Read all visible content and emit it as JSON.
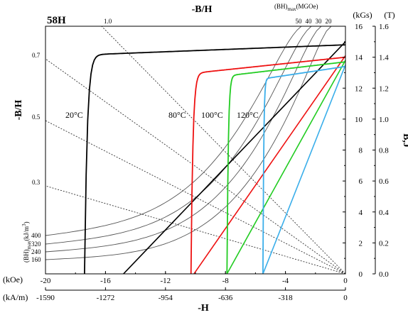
{
  "chart_data": {
    "type": "line",
    "title": "58H",
    "top_axis_label": "-B/H",
    "bottom_axis_label": "-H",
    "left_axis_label": "-B/H",
    "right_axis_label": "B,J",
    "right_unit_kgs": "(kGs)",
    "right_unit_t": "(T)",
    "bottom_unit_koe": "(kOe)",
    "bottom_unit_kam": "(kA/m)",
    "bh_top_label": {
      "prefix": "(BH)",
      "sub": "max",
      "suffix": "(MGOe)"
    },
    "bh_left_label": {
      "prefix": "(BH)",
      "sub": "max",
      "suffix": "(kJ/m",
      "sup": "3",
      "close": ")"
    },
    "xlim_koe": [
      -20,
      0
    ],
    "ylim_kgs": [
      0,
      16
    ],
    "ylim_t": [
      0.0,
      1.6
    ],
    "x_ticks_koe": [
      "-20",
      "-16",
      "-12",
      "-8",
      "-4",
      "0"
    ],
    "x_ticks_kam": [
      "-1590",
      "-1272",
      "-954",
      "-636",
      "-318",
      "0"
    ],
    "y_ticks_kgs": [
      "0",
      "2",
      "4",
      "6",
      "8",
      "10",
      "12",
      "14",
      "16"
    ],
    "y_ticks_t": [
      "0.0",
      "0.2",
      "0.4",
      "0.6",
      "0.8",
      "1.0",
      "1.2",
      "1.4",
      "1.6"
    ],
    "load_lines": [
      {
        "label": "0.3",
        "slope": 0.3
      },
      {
        "label": "0.5",
        "slope": 0.5
      },
      {
        "label": "0.7",
        "slope": 0.7
      },
      {
        "label": "1.0",
        "slope": 1.0
      }
    ],
    "bhmax_lines_mgoe": [
      {
        "label": "50",
        "value": 50
      },
      {
        "label": "40",
        "value": 40
      },
      {
        "label": "30",
        "value": 30
      },
      {
        "label": "20",
        "value": 20
      }
    ],
    "bhmax_labels_kjm3": [
      "400",
      "320",
      "240",
      "160"
    ],
    "series": [
      {
        "name": "20°C",
        "color": "#000000",
        "Br": 14.8,
        "Hcj": -17.4,
        "knee": 0.25,
        "b_start": 14.15,
        "n": 6
      },
      {
        "name": "80°C",
        "color": "#ee1111",
        "Br": 14.0,
        "Hcj": -10.3,
        "knee": 0.3,
        "b_start": 12.95,
        "n": 6
      },
      {
        "name": "100°C",
        "color": "#22cc22",
        "Br": 13.7,
        "Hcj": -7.9,
        "knee": 0.22,
        "b_start": 12.8,
        "n": 5
      },
      {
        "name": "120°C",
        "color": "#3aaeea",
        "Br": 13.4,
        "Hcj": -5.5,
        "knee": 0.15,
        "b_start": 12.6,
        "n": 4
      }
    ],
    "demag_lines": [
      {
        "color": "#000000",
        "Br": 15.0,
        "Hc_koe": -14.8
      },
      {
        "color": "#ee1111",
        "Br": 14.1,
        "Hc_koe": -10.1
      },
      {
        "color": "#22cc22",
        "Br": 13.8,
        "Hc_koe": -7.9
      },
      {
        "color": "#3aaeea",
        "Br": 13.5,
        "Hc_koe": -5.5
      }
    ]
  }
}
